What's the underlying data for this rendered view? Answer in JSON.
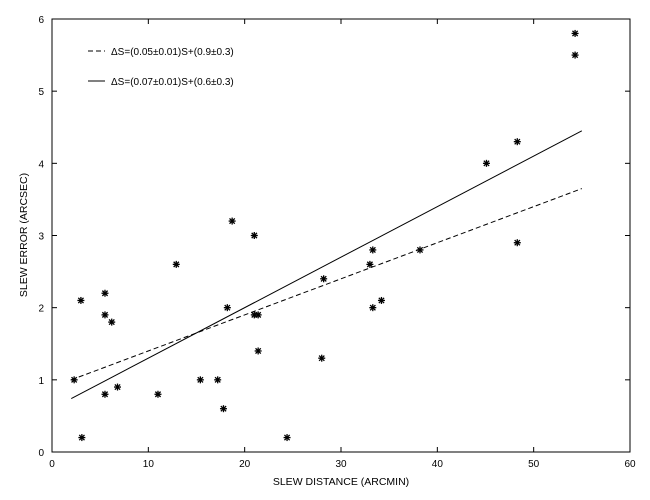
{
  "chart_data": {
    "type": "scatter",
    "xlabel": "SLEW DISTANCE (ARCMIN)",
    "ylabel": "SLEW ERROR (ARCSEC)",
    "xlim": [
      0,
      60
    ],
    "ylim": [
      0,
      6
    ],
    "xticks": [
      0,
      10,
      20,
      30,
      40,
      50,
      60
    ],
    "yticks": [
      0,
      1,
      2,
      3,
      4,
      5,
      6
    ],
    "grid": false,
    "legend_position": "top-left",
    "marker": "asterisk",
    "series": [
      {
        "kind": "points",
        "points": [
          {
            "x": 2.3,
            "y": 1.0
          },
          {
            "x": 3.0,
            "y": 2.1
          },
          {
            "x": 3.1,
            "y": 0.2
          },
          {
            "x": 5.5,
            "y": 2.2
          },
          {
            "x": 5.5,
            "y": 1.9
          },
          {
            "x": 5.5,
            "y": 0.8
          },
          {
            "x": 6.2,
            "y": 1.8
          },
          {
            "x": 6.8,
            "y": 0.9
          },
          {
            "x": 11.0,
            "y": 0.8
          },
          {
            "x": 12.9,
            "y": 2.6
          },
          {
            "x": 15.4,
            "y": 1.0
          },
          {
            "x": 17.2,
            "y": 1.0
          },
          {
            "x": 17.8,
            "y": 0.6
          },
          {
            "x": 18.2,
            "y": 2.0
          },
          {
            "x": 18.7,
            "y": 3.2
          },
          {
            "x": 21.0,
            "y": 3.0
          },
          {
            "x": 21.0,
            "y": 1.9
          },
          {
            "x": 21.4,
            "y": 1.9
          },
          {
            "x": 21.4,
            "y": 1.4
          },
          {
            "x": 24.4,
            "y": 0.2
          },
          {
            "x": 28.0,
            "y": 1.3
          },
          {
            "x": 28.2,
            "y": 2.4
          },
          {
            "x": 33.0,
            "y": 2.6
          },
          {
            "x": 33.3,
            "y": 2.8
          },
          {
            "x": 33.3,
            "y": 2.0
          },
          {
            "x": 34.2,
            "y": 2.1
          },
          {
            "x": 38.2,
            "y": 2.8
          },
          {
            "x": 45.1,
            "y": 4.0
          },
          {
            "x": 48.3,
            "y": 4.3
          },
          {
            "x": 48.3,
            "y": 2.9
          },
          {
            "x": 54.3,
            "y": 5.8
          },
          {
            "x": 54.3,
            "y": 5.5
          }
        ]
      },
      {
        "name": "ΔS=(0.05±0.01)S+(0.9±0.3)",
        "kind": "fit",
        "style": "dashed",
        "x": [
          2,
          55
        ],
        "y": [
          1.0,
          3.65
        ]
      },
      {
        "name": "ΔS=(0.07±0.01)S+(0.6±0.3)",
        "kind": "fit",
        "style": "solid",
        "x": [
          2,
          55
        ],
        "y": [
          0.74,
          4.45
        ]
      }
    ]
  }
}
